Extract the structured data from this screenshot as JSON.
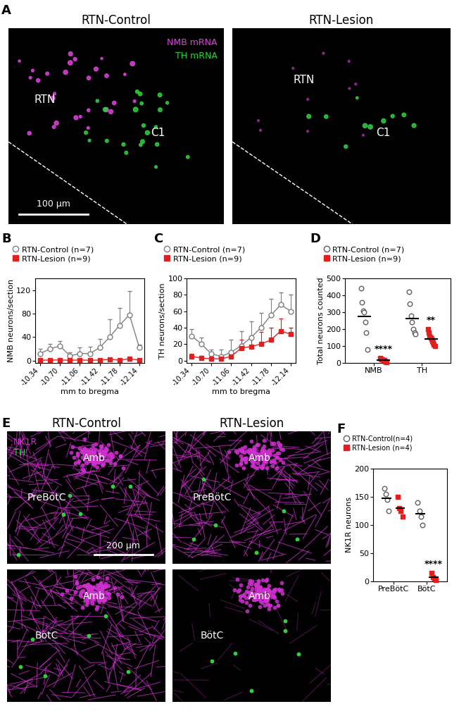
{
  "images": [
    {
      "panel_label": "A",
      "titles": [
        "RTN-Control",
        "RTN-Lesion"
      ],
      "channels": [
        {
          "name": "NMB mRNA",
          "color": "#e040e0"
        },
        {
          "name": "TH mRNA",
          "color": "#30d040"
        }
      ],
      "regions": [
        "RTN",
        "C1"
      ],
      "scale_bar": "100 µm"
    },
    {
      "panel_label": "E",
      "titles": [
        "RTN-Control",
        "RTN-Lesion"
      ],
      "channels": [
        {
          "name": "NK1R",
          "color": "#d030d0"
        },
        {
          "name": "TH",
          "color": "#30d040"
        }
      ],
      "rows": [
        "PreBötC",
        "BötC"
      ],
      "nucleus": "Amb",
      "scale_bar": "200 µm"
    }
  ],
  "chart_data": [
    {
      "type": "line",
      "panel_label": "B",
      "ylabel": "NMB neurons/section",
      "xlabel": "mm to bregma",
      "x": [
        -10.34,
        -10.52,
        -10.7,
        -10.88,
        -11.06,
        -11.24,
        -11.42,
        -11.6,
        -11.78,
        -11.96,
        -12.14
      ],
      "xlim": [
        -10.25,
        -12.23
      ],
      "xticks": [
        -10.34,
        {
          "value": -10.7,
          "label": "-10.70"
        },
        -11.06,
        -11.42,
        -11.78,
        -12.14
      ],
      "ylim": [
        -4,
        140
      ],
      "yticks": [
        0,
        40,
        80,
        120
      ],
      "legend": "upper left",
      "series": [
        {
          "name": "RTN-Control (n=7)",
          "color": "#808080",
          "marker": "open_circle",
          "line_style": "solid",
          "values": [
            12,
            20,
            25,
            8,
            12,
            12,
            22,
            40,
            60,
            78,
            22
          ],
          "errors": [
            8,
            8,
            8,
            6,
            10,
            12,
            15,
            30,
            30,
            40,
            5
          ]
        },
        {
          "name": "RTN-Lesion (n=9)",
          "color": "#e0201e",
          "marker": "square",
          "line_style": "solid",
          "values": [
            0.5,
            1,
            1,
            0.5,
            1,
            0.5,
            1,
            2,
            1,
            3,
            1
          ],
          "errors": [
            1,
            1,
            1,
            1,
            1,
            1,
            1,
            2,
            1,
            2,
            1
          ]
        }
      ]
    },
    {
      "type": "line",
      "panel_label": "C",
      "ylabel": "TH neurons/section",
      "xlabel": "mm to bregma",
      "x": [
        -10.34,
        -10.52,
        -10.7,
        -10.88,
        -11.06,
        -11.24,
        -11.42,
        -11.6,
        -11.78,
        -11.96,
        -12.14
      ],
      "xlim": [
        -10.25,
        -12.23
      ],
      "xticks": [
        -10.34,
        {
          "value": -10.7,
          "label": "-10.70"
        },
        -11.06,
        -11.42,
        -11.78,
        -12.14
      ],
      "ylim": [
        -3,
        100
      ],
      "yticks": [
        0,
        20,
        40,
        60,
        80,
        100
      ],
      "legend": "upper left",
      "series": [
        {
          "name": "RTN-Control (n=7)",
          "color": "#808080",
          "marker": "open_circle",
          "line_style": "solid",
          "values": [
            30,
            20,
            8,
            5,
            10,
            18,
            28,
            40,
            55,
            68,
            60
          ],
          "errors": [
            8,
            8,
            5,
            8,
            15,
            18,
            20,
            18,
            20,
            15,
            20
          ]
        },
        {
          "name": "RTN-Lesion (n=9)",
          "color": "#e0201e",
          "marker": "square",
          "line_style": "solid",
          "values": [
            5,
            3,
            2,
            2,
            5,
            15,
            17,
            20,
            25,
            36,
            32
          ],
          "errors": [
            3,
            3,
            2,
            2,
            3,
            10,
            10,
            15,
            15,
            15,
            8
          ]
        }
      ]
    },
    {
      "type": "scatter",
      "panel_label": "D",
      "ylabel": "Total neurons counted",
      "categories": [
        "NMB",
        "TH"
      ],
      "ylim": [
        0,
        500
      ],
      "yticks": [
        0,
        100,
        200,
        300,
        400,
        500
      ],
      "legend": "upper left",
      "series": [
        {
          "name": "RTN-Control (n=7)",
          "color": "#606060",
          "marker": "open_circle",
          "values": [
            [
              440,
              360,
              310,
              300,
              240,
              180,
              80
            ],
            [
              420,
              350,
              280,
              240,
              200,
              180,
              170
            ]
          ],
          "means": [
            273,
            263
          ]
        },
        {
          "name": "RTN-Lesion (n=9)",
          "color": "#e0201e",
          "marker": "square",
          "values": [
            [
              30,
              25,
              20,
              20,
              15,
              15,
              10,
              10,
              5
            ],
            [
              200,
              180,
              160,
              150,
              140,
              130,
              120,
              110,
              100
            ]
          ],
          "means": [
            17,
            143
          ],
          "annotations": [
            {
              "category": "NMB",
              "text": "****"
            },
            {
              "category": "TH",
              "text": "**"
            }
          ]
        }
      ]
    },
    {
      "type": "scatter",
      "panel_label": "F",
      "ylabel": "NK1R neurons",
      "categories": [
        "PreBötC",
        "BötC"
      ],
      "ylim": [
        0,
        200
      ],
      "yticks": [
        0,
        50,
        100,
        150,
        200
      ],
      "legend": "upper left",
      "series": [
        {
          "name": "RTN-Control(n=4)",
          "color": "#606060",
          "marker": "open_circle",
          "values": [
            [
              165,
              155,
              145,
              125
            ],
            [
              140,
              125,
              115,
              100
            ]
          ],
          "means": [
            148,
            120
          ]
        },
        {
          "name": "RTN-Lesion (n=4)",
          "color": "#e0201e",
          "marker": "square",
          "values": [
            [
              150,
              130,
              125,
              115
            ],
            [
              15,
              8,
              5,
              2
            ]
          ],
          "means": [
            130,
            8
          ],
          "annotations": [
            {
              "category": "BötC",
              "text": "****"
            }
          ]
        }
      ]
    }
  ]
}
